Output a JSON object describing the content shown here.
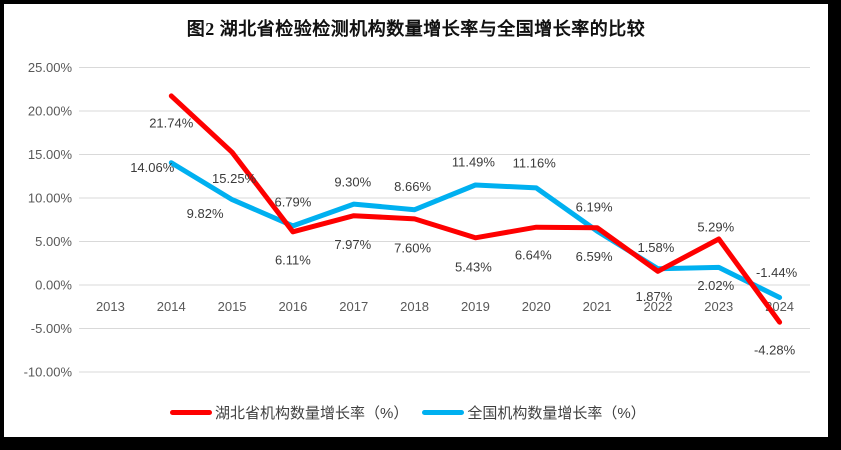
{
  "title": "图2 湖北省检验检测机构数量增长率与全国增长率的比较",
  "chart_data": {
    "type": "line",
    "categories": [
      "2013",
      "2014",
      "2015",
      "2016",
      "2017",
      "2018",
      "2019",
      "2020",
      "2021",
      "2022",
      "2023",
      "2024"
    ],
    "series": [
      {
        "id": "hubei",
        "name": "湖北省机构数量增长率（%）",
        "color": "#fe0000",
        "values": [
          null,
          21.74,
          15.25,
          6.11,
          7.97,
          7.6,
          5.43,
          6.64,
          6.59,
          1.58,
          5.29,
          -4.28
        ],
        "labels": [
          null,
          "21.74%",
          "15.25%",
          "6.11%",
          "7.97%",
          "7.60%",
          "5.43%",
          "6.64%",
          "6.59%",
          "1.58%",
          "5.29%",
          "-4.28%"
        ],
        "label_offsets": [
          null,
          [
            0,
            27
          ],
          [
            2,
            26
          ],
          [
            0,
            28
          ],
          [
            -1,
            29
          ],
          [
            -2,
            29
          ],
          [
            -2,
            29
          ],
          [
            -3,
            28
          ],
          [
            -3,
            29
          ],
          [
            -2,
            -24
          ],
          [
            -3,
            -12
          ],
          [
            -5,
            28
          ]
        ]
      },
      {
        "id": "national",
        "name": "全国机构数量增长率（%）",
        "color": "#00b0f0",
        "values": [
          null,
          14.06,
          9.82,
          6.79,
          9.3,
          8.66,
          11.49,
          11.16,
          6.19,
          1.87,
          2.02,
          -1.44
        ],
        "labels": [
          null,
          "14.06%",
          "9.82%",
          "6.79%",
          "9.30%",
          "8.66%",
          "11.49%",
          "11.16%",
          "6.19%",
          "1.87%",
          "2.02%",
          "-1.44%"
        ],
        "label_offsets": [
          null,
          [
            -19,
            5
          ],
          [
            -27,
            14
          ],
          [
            0,
            -24
          ],
          [
            -1,
            -22
          ],
          [
            -2,
            -23
          ],
          [
            -2,
            -23
          ],
          [
            -2,
            -25
          ],
          [
            -3,
            -24
          ],
          [
            -4,
            28
          ],
          [
            -3,
            18
          ],
          [
            -3,
            -25
          ]
        ]
      }
    ],
    "y_ticks": [
      {
        "value": 25,
        "label": "25.00%"
      },
      {
        "value": 20,
        "label": "20.00%"
      },
      {
        "value": 15,
        "label": "15.00%"
      },
      {
        "value": 10,
        "label": "10.00%"
      },
      {
        "value": 5,
        "label": "5.00%"
      },
      {
        "value": 0,
        "label": "0.00%"
      },
      {
        "value": -5,
        "label": "-5.00%"
      },
      {
        "value": -10,
        "label": "-10.00%"
      }
    ],
    "ylim": [
      -10,
      25
    ],
    "grid": true,
    "legend_position": "bottom",
    "grid_color": "#d9d9d9",
    "axis_text_color": "#595959",
    "label_text_color": "#3b3b3b"
  }
}
